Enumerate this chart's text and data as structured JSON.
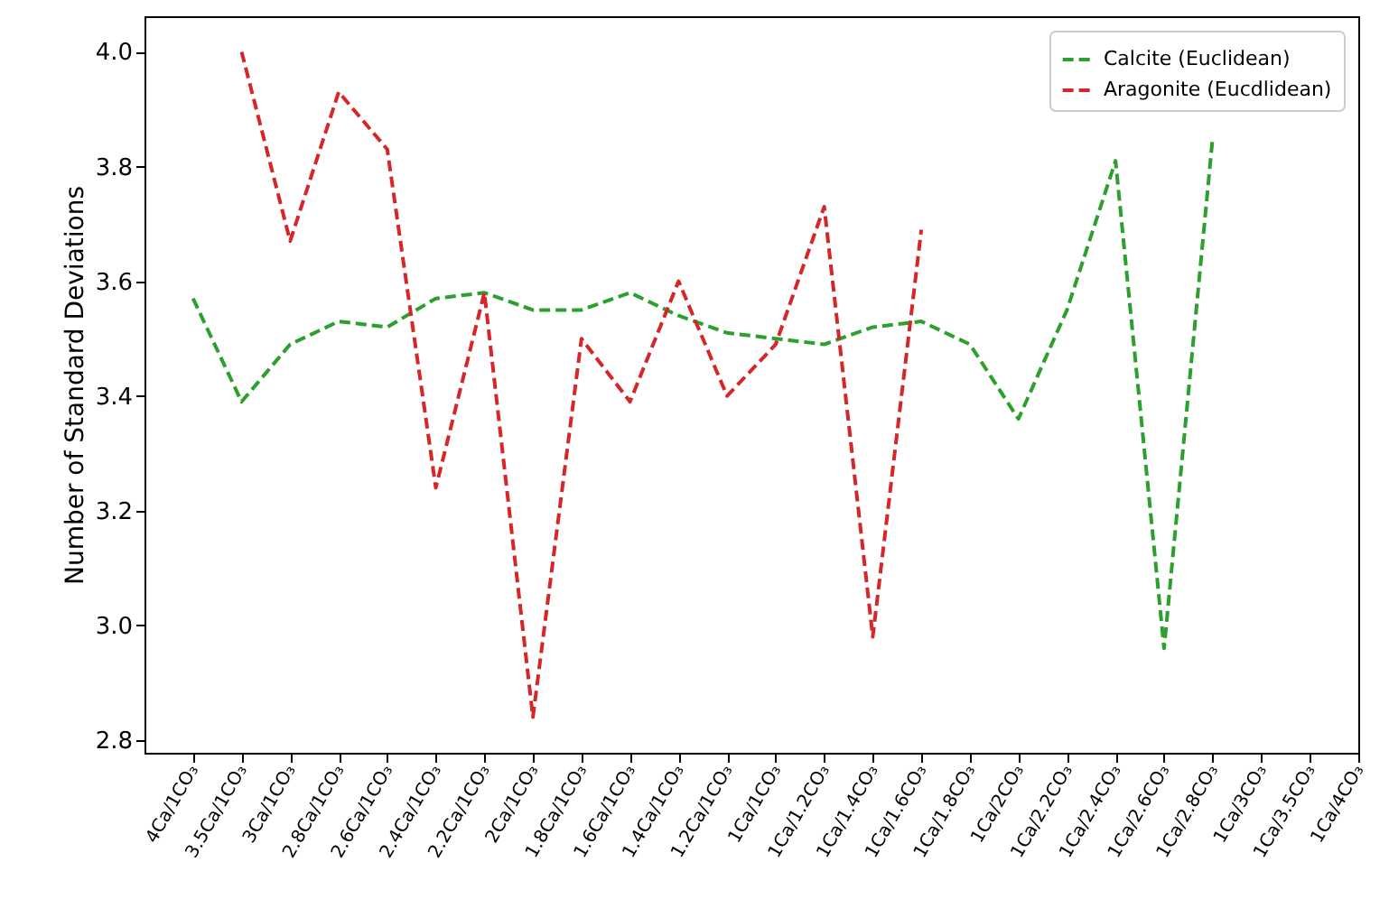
{
  "chart_data": {
    "type": "line",
    "ylabel": "Number of Standard Deviations",
    "categories": [
      "4Ca/1CO₃",
      "3.5Ca/1CO₃",
      "3Ca/1CO₃",
      "2.8Ca/1CO₃",
      "2.6Ca/1CO₃",
      "2.4Ca/1CO₃",
      "2.2Ca/1CO₃",
      "2Ca/1CO₃",
      "1.8Ca/1CO₃",
      "1.6Ca/1CO₃",
      "1.4Ca/1CO₃",
      "1.2Ca/1CO₃",
      "1Ca/1CO₃",
      "1Ca/1.2CO₃",
      "1Ca/1.4CO₃",
      "1Ca/1.6CO₃",
      "1Ca/1.8CO₃",
      "1Ca/2CO₃",
      "1Ca/2.2CO₃",
      "1Ca/2.4CO₃",
      "1Ca/2.6CO₃",
      "1Ca/2.8CO₃",
      "1Ca/3CO₃",
      "1Ca/3.5CO₃",
      "1Ca/4CO₃"
    ],
    "series": [
      {
        "name": "Calcite (Euclidean)",
        "color": "#2ca02c",
        "values": [
          3.57,
          3.39,
          3.49,
          3.53,
          3.52,
          3.57,
          3.58,
          3.55,
          3.55,
          3.58,
          3.54,
          3.51,
          3.5,
          3.49,
          3.52,
          3.53,
          3.49,
          3.36,
          3.55,
          3.81,
          2.96,
          3.85,
          null,
          null,
          null
        ]
      },
      {
        "name": "Aragonite (Eucdlidean)",
        "color": "#d62728",
        "values": [
          null,
          4.0,
          3.67,
          3.93,
          3.83,
          3.24,
          3.58,
          2.84,
          3.5,
          3.39,
          3.6,
          3.4,
          3.49,
          3.73,
          2.98,
          3.69,
          null,
          null,
          null,
          null,
          null,
          null,
          null,
          null,
          null
        ]
      }
    ],
    "ylim": [
      2.778,
      4.062
    ],
    "yticks": [
      2.8,
      {
        "value": 3.0,
        "label": "3.0"
      },
      3.2,
      3.4,
      3.6,
      3.8,
      {
        "value": 4.0,
        "label": "4.0"
      }
    ],
    "grid": false,
    "legend": "top right",
    "line_style": "dashed",
    "marker": "none"
  }
}
